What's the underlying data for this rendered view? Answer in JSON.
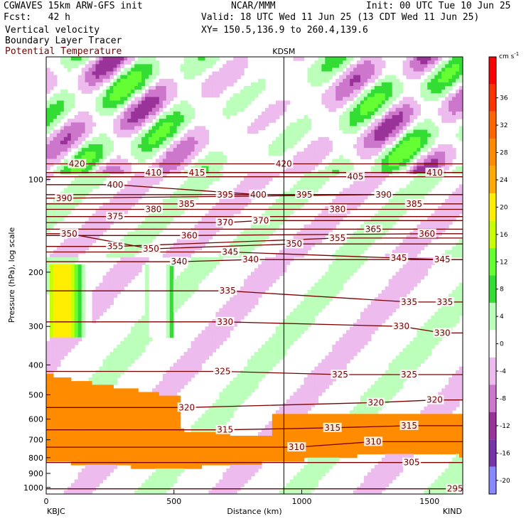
{
  "header": {
    "model": "CGWAVES 15km ARW-GFS init",
    "fcst": "Fcst:   42 h",
    "center": "NCAR/MMM",
    "init": "Init: 00 UTC Tue 10 Jun 25",
    "valid": "Valid: 18 UTC Wed 11 Jun 25 (13 CDT Wed 11 Jun 25)",
    "xy": "XY= 150.5,136.9 to 260.4,139.6",
    "field1": "Vertical velocity",
    "field2": "Boundary Layer Tracer",
    "field3": "Potential Temperature",
    "field3_color": "#7a0000"
  },
  "colors": {
    "theta": "#7a0000",
    "pbl_fill": "#ff8c00"
  },
  "chart_data": {
    "type": "heatmap",
    "title": "KDSM",
    "xlabel": "Distance (km)",
    "ylabel": "Pressure (hPa), log scale",
    "x_ticks": [
      "0",
      "500",
      "1000",
      "1500"
    ],
    "x_tick_values": [
      0,
      500,
      1000,
      1500
    ],
    "xlim": [
      0,
      1630
    ],
    "y_ticks": [
      "100",
      "200",
      "300",
      "400",
      "500",
      "600",
      "700",
      "800",
      "900",
      "1000"
    ],
    "y_tick_values": [
      100,
      200,
      300,
      400,
      500,
      600,
      700,
      800,
      900,
      1000
    ],
    "ylim": [
      1050,
      40
    ],
    "y_scale": "log",
    "left_station": "KBJC",
    "right_station": "KIND",
    "marker_station": "KDSM",
    "marker_x": 930,
    "colorbar": {
      "unit": "cm s",
      "unit_exp": "-1",
      "labels": [
        "36",
        "32",
        "28",
        "24",
        "20",
        "16",
        "12",
        "8",
        "4",
        "0",
        "-4",
        "-8",
        "-12",
        "-16",
        "-20"
      ],
      "label_values": [
        36,
        32,
        28,
        24,
        20,
        16,
        12,
        8,
        4,
        0,
        -4,
        -8,
        -12,
        -16,
        -20
      ],
      "range": [
        -22,
        42
      ],
      "bins": [
        {
          "lo": 38,
          "hi": 42,
          "color": "#ff0000"
        },
        {
          "lo": 34,
          "hi": 38,
          "color": "#ff3300"
        },
        {
          "lo": 30,
          "hi": 34,
          "color": "#ff6600"
        },
        {
          "lo": 26,
          "hi": 30,
          "color": "#ff8c00"
        },
        {
          "lo": 22,
          "hi": 26,
          "color": "#ffaa00"
        },
        {
          "lo": 18,
          "hi": 22,
          "color": "#ffee00"
        },
        {
          "lo": 14,
          "hi": 18,
          "color": "#c8ff00"
        },
        {
          "lo": 10,
          "hi": 14,
          "color": "#66ff33"
        },
        {
          "lo": 6,
          "hi": 10,
          "color": "#33dd33"
        },
        {
          "lo": 2,
          "hi": 6,
          "color": "#bbffbb"
        },
        {
          "lo": -2,
          "hi": 2,
          "color": "#ffffff"
        },
        {
          "lo": -6,
          "hi": -2,
          "color": "#eebbee"
        },
        {
          "lo": -10,
          "hi": -6,
          "color": "#cc77cc"
        },
        {
          "lo": -14,
          "hi": -10,
          "color": "#993399"
        },
        {
          "lo": -18,
          "hi": -14,
          "color": "#7733aa"
        },
        {
          "lo": -22,
          "hi": -18,
          "color": "#8888ff"
        }
      ]
    },
    "theta_contours": [
      {
        "label": "420",
        "x": 120,
        "p": 89
      },
      {
        "label": "410",
        "x": 420,
        "p": 95
      },
      {
        "label": "415",
        "x": 590,
        "p": 95
      },
      {
        "label": "420",
        "x": 930,
        "p": 89
      },
      {
        "label": "405",
        "x": 1210,
        "p": 98
      },
      {
        "label": "410",
        "x": 1520,
        "p": 95
      },
      {
        "label": "400",
        "x": 270,
        "p": 104
      },
      {
        "label": "390",
        "x": 70,
        "p": 115
      },
      {
        "label": "395",
        "x": 700,
        "p": 112
      },
      {
        "label": "400",
        "x": 830,
        "p": 112
      },
      {
        "label": "395",
        "x": 1010,
        "p": 112
      },
      {
        "label": "390",
        "x": 1320,
        "p": 112
      },
      {
        "label": "380",
        "x": 420,
        "p": 125
      },
      {
        "label": "385",
        "x": 550,
        "p": 120
      },
      {
        "label": "380",
        "x": 1140,
        "p": 125
      },
      {
        "label": "385",
        "x": 1440,
        "p": 120
      },
      {
        "label": "375",
        "x": 270,
        "p": 132
      },
      {
        "label": "370",
        "x": 700,
        "p": 138
      },
      {
        "label": "370",
        "x": 840,
        "p": 136
      },
      {
        "label": "365",
        "x": 1280,
        "p": 145
      },
      {
        "label": "360",
        "x": 1490,
        "p": 150
      },
      {
        "label": "360",
        "x": 560,
        "p": 152
      },
      {
        "label": "350",
        "x": 90,
        "p": 150
      },
      {
        "label": "355",
        "x": 270,
        "p": 165
      },
      {
        "label": "350",
        "x": 410,
        "p": 168
      },
      {
        "label": "350",
        "x": 970,
        "p": 162
      },
      {
        "label": "355",
        "x": 1140,
        "p": 155
      },
      {
        "label": "345",
        "x": 720,
        "p": 172
      },
      {
        "label": "340",
        "x": 520,
        "p": 185
      },
      {
        "label": "340",
        "x": 800,
        "p": 182
      },
      {
        "label": "345",
        "x": 1380,
        "p": 180
      },
      {
        "label": "345",
        "x": 1550,
        "p": 182
      },
      {
        "label": "335",
        "x": 710,
        "p": 230
      },
      {
        "label": "335",
        "x": 1420,
        "p": 250
      },
      {
        "label": "335",
        "x": 1560,
        "p": 250
      },
      {
        "label": "330",
        "x": 700,
        "p": 290
      },
      {
        "label": "330",
        "x": 1390,
        "p": 300
      },
      {
        "label": "330",
        "x": 1550,
        "p": 315
      },
      {
        "label": "325",
        "x": 690,
        "p": 420
      },
      {
        "label": "325",
        "x": 1150,
        "p": 430
      },
      {
        "label": "325",
        "x": 1420,
        "p": 430
      },
      {
        "label": "320",
        "x": 550,
        "p": 550
      },
      {
        "label": "320",
        "x": 1290,
        "p": 530
      },
      {
        "label": "320",
        "x": 1520,
        "p": 520
      },
      {
        "label": "315",
        "x": 700,
        "p": 650
      },
      {
        "label": "315",
        "x": 1120,
        "p": 640
      },
      {
        "label": "315",
        "x": 1420,
        "p": 630
      },
      {
        "label": "310",
        "x": 980,
        "p": 740
      },
      {
        "label": "310",
        "x": 1280,
        "p": 710
      },
      {
        "label": "305",
        "x": 1430,
        "p": 830
      },
      {
        "label": "295",
        "x": 1600,
        "p": 1010
      }
    ]
  }
}
